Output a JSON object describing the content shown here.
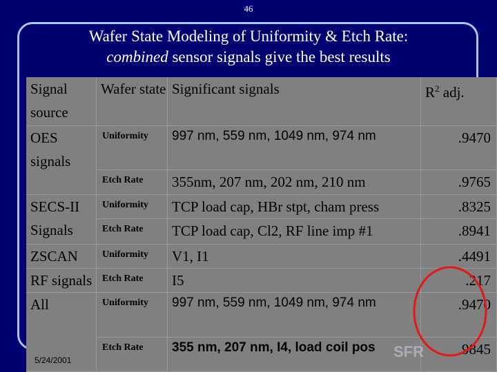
{
  "page_number": "46",
  "title": {
    "line1": "Wafer State Modeling of Uniformity & Etch Rate:",
    "line2_em": "combined",
    "line2_rest": " sensor signals give the best results"
  },
  "table": {
    "header": {
      "source": "Signal source",
      "state": "Wafer state",
      "signals": "Significant signals",
      "r2": {
        "base": "R",
        "sup": "2",
        "rest": " adj."
      }
    },
    "rows": [
      {
        "source": "OES signals",
        "state": "Uniformity",
        "signals": "997 nm, 559 nm, 1049 nm, 974 nm",
        "r2": ".9470"
      },
      {
        "state": "Etch Rate",
        "signals": "355nm, 207 nm, 202 nm, 210 nm",
        "r2": ".9765"
      },
      {
        "source": "SECS-II Signals",
        "state": "Uniformity",
        "signals": "TCP load cap, HBr stpt, cham press",
        "r2": ".8325"
      },
      {
        "state": "Etch Rate",
        "signals": "TCP load cap, Cl2, RF line imp #1",
        "r2": ".8941"
      },
      {
        "source": "ZSCAN",
        "state": "Uniformity",
        "signals": "V1, I1",
        "r2": ".4491"
      },
      {
        "source": "RF signals",
        "state": "Etch Rate",
        "signals": "I5",
        "r2": ".217"
      },
      {
        "source": "All",
        "state": "Uniformity",
        "signals": "997 nm, 559 nm, 1049 nm, 974 nm",
        "r2": ".9470"
      },
      {
        "state": "Etch Rate",
        "signals": "355 nm, 207 nm, I4, load coil pos",
        "r2": ".9845"
      }
    ]
  },
  "footer": {
    "date": "5/24/2001",
    "logo": "SFR"
  }
}
